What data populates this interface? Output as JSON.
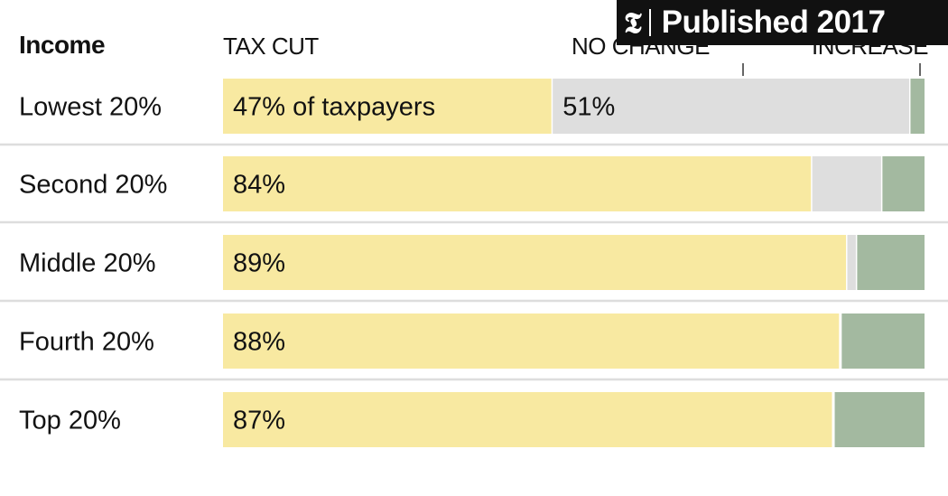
{
  "badge": {
    "logo_glyph": "𝕿",
    "text": "Published 2017"
  },
  "colors": {
    "cut": "#f8e9a1",
    "no_change": "#dedede",
    "increase": "#a3b9a0",
    "divider": "#dddddd"
  },
  "chart_data": {
    "type": "bar",
    "stacked": true,
    "orientation": "horizontal",
    "row_header": "Income",
    "categories": [
      "Lowest 20%",
      "Second 20%",
      "Middle 20%",
      "Fourth 20%",
      "Top 20%"
    ],
    "series": [
      {
        "name": "TAX CUT",
        "values": [
          47,
          84,
          89,
          88,
          87
        ]
      },
      {
        "name": "NO CHANGE",
        "values": [
          51,
          10,
          1.4,
          0.2,
          0.2
        ]
      },
      {
        "name": "INCREASE",
        "values": [
          2,
          6,
          9.6,
          11.8,
          12.8
        ]
      }
    ],
    "data_labels": [
      [
        "47% of taxpayers",
        "51%",
        ""
      ],
      [
        "84%",
        "",
        ""
      ],
      [
        "89%",
        "",
        ""
      ],
      [
        "88%",
        "",
        ""
      ],
      [
        "87%",
        "",
        ""
      ]
    ],
    "xlim": [
      0,
      100
    ],
    "grid": false,
    "legend": "column headers above bars"
  }
}
